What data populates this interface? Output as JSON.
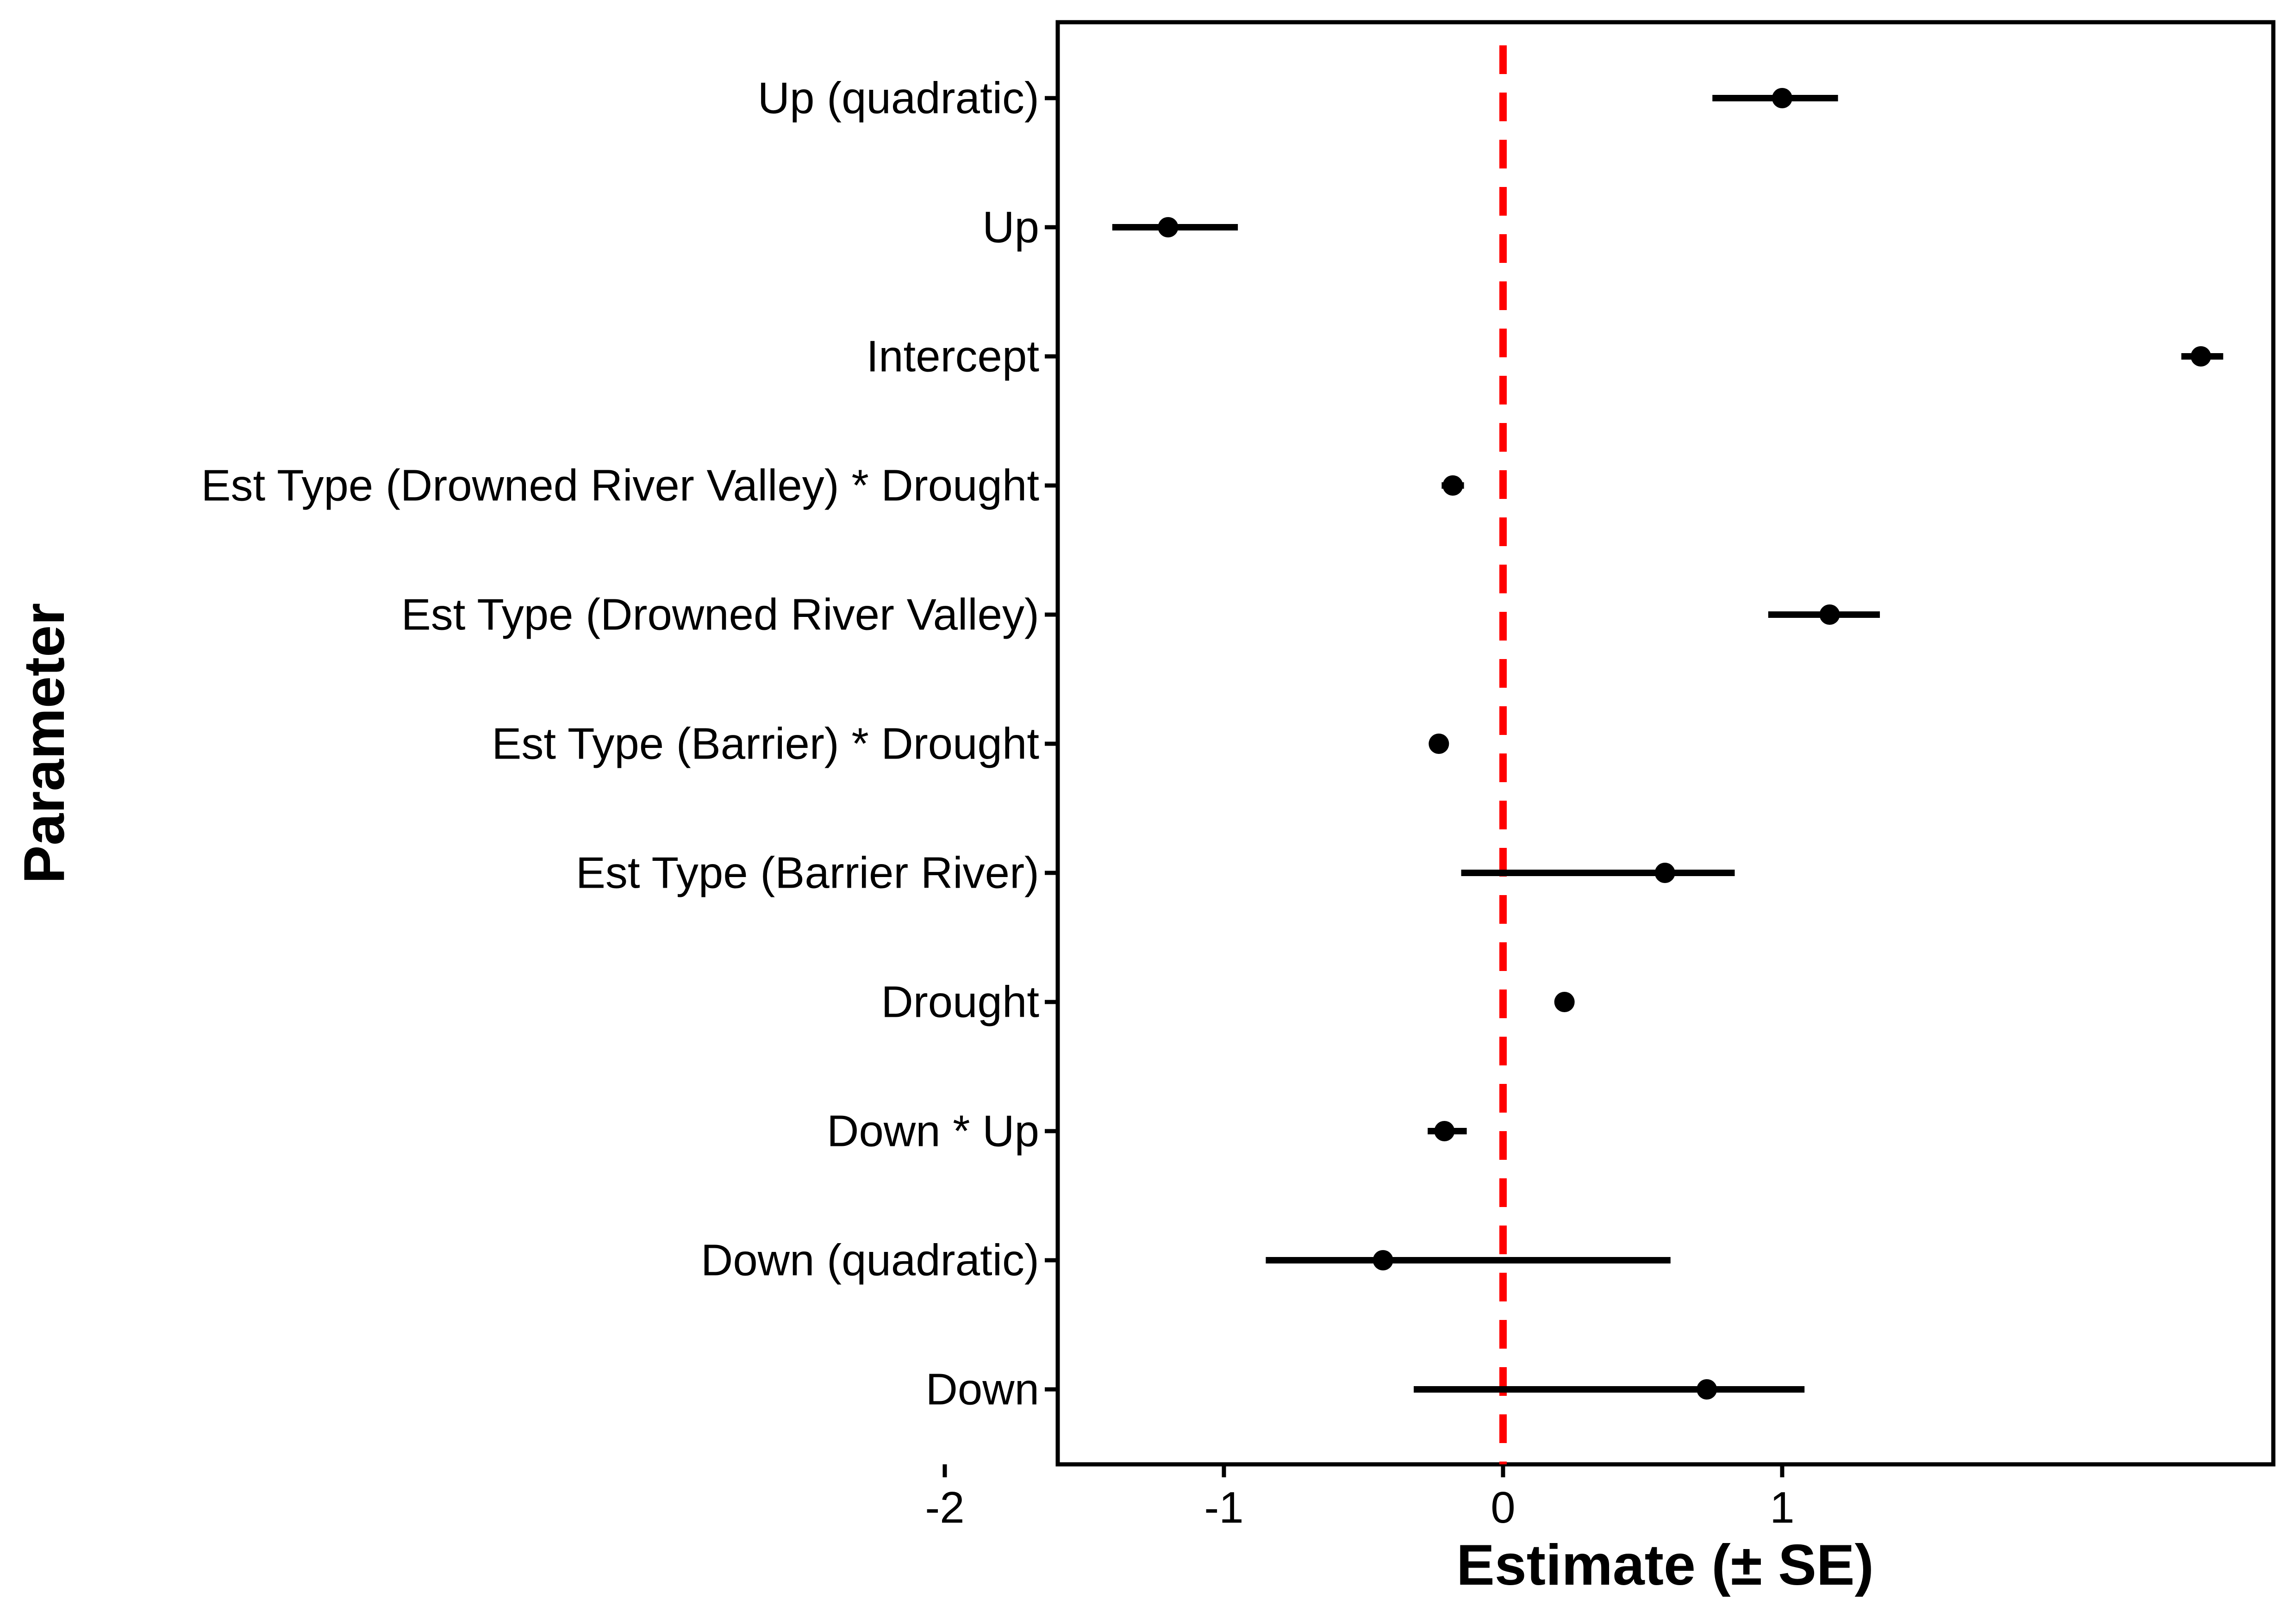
{
  "chart_data": {
    "type": "forest",
    "xlabel": "Estimate (± SE)",
    "ylabel": "Parameter",
    "xlim": [
      -2.4,
      3.3
    ],
    "x_ticks": [
      -2,
      -1,
      0,
      1
    ],
    "x_tick_labels": [
      "-2",
      "-1",
      "0",
      "1"
    ],
    "reference_line": {
      "x": 0,
      "style": "dashed",
      "color": "#ff0000"
    },
    "grid": false,
    "parameters": [
      {
        "label": "Down",
        "estimate": 0.73,
        "lower": -0.32,
        "upper": 1.08
      },
      {
        "label": "Down (quadratic)",
        "estimate": -0.43,
        "lower": -0.85,
        "upper": 0.6
      },
      {
        "label": "Down * Up ",
        "estimate": -0.21,
        "lower": -0.27,
        "upper": -0.13
      },
      {
        "label": "Drought",
        "estimate": 0.22,
        "lower": 0.2,
        "upper": 0.24
      },
      {
        "label": "Est Type (Barrier River)",
        "estimate": 0.58,
        "lower": -0.15,
        "upper": 0.83
      },
      {
        "label": "Est Type (Barrier) * Drought",
        "estimate": -0.23,
        "lower": -0.25,
        "upper": -0.21
      },
      {
        "label": "Est Type (Drowned River Valley)",
        "estimate": 1.17,
        "lower": 0.95,
        "upper": 1.35
      },
      {
        "label": "Est Type (Drowned River Valley) * Drought",
        "estimate": -0.18,
        "lower": -0.22,
        "upper": -0.14
      },
      {
        "label": "Intercept",
        "estimate": 2.5,
        "lower": 2.43,
        "upper": 2.58
      },
      {
        "label": "Up",
        "estimate": -1.2,
        "lower": -1.4,
        "upper": -0.95
      },
      {
        "label": "Up (quadratic)",
        "estimate": 1.0,
        "lower": 0.75,
        "upper": 1.2
      }
    ]
  },
  "colors": {
    "points": "#000000",
    "error_bars": "#000000",
    "reference_line": "#ff0000",
    "panel_border": "#000000"
  }
}
